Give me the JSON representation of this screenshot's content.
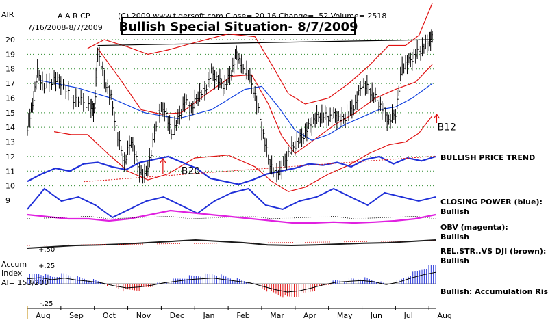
{
  "chart_data": {
    "type": "line",
    "title": "Bullish Special Situation- 8/7/2009",
    "header": {
      "symbol": "AIR",
      "company": "A A R CP",
      "date_range": "7/16/2008-8/7/2009",
      "info_line": "(C) 2009 www.tigersoft.com    Close=  20.16   Change=  .52 Volume=  2518"
    },
    "y_axis": {
      "min": 9,
      "max": 20,
      "ticks": [
        "20",
        "19",
        "18",
        "17",
        "16",
        "15",
        "14",
        "13",
        "12",
        "11",
        "10",
        "9"
      ]
    },
    "x_axis": {
      "months": [
        "Aug",
        "Sep",
        "Oct",
        "Nov",
        "Dec",
        "Jan",
        "Feb",
        "Mar",
        "Apr",
        "May",
        "Jun",
        "Jul",
        "Aug"
      ]
    },
    "price": [
      {
        "m": 0.0,
        "v": 14.0
      },
      {
        "m": 0.15,
        "v": 15.5
      },
      {
        "m": 0.3,
        "v": 17.8
      },
      {
        "m": 0.5,
        "v": 16.8
      },
      {
        "m": 0.8,
        "v": 17.3
      },
      {
        "m": 1.0,
        "v": 17.1
      },
      {
        "m": 1.3,
        "v": 16.0
      },
      {
        "m": 1.6,
        "v": 15.8
      },
      {
        "m": 1.9,
        "v": 15.4
      },
      {
        "m": 2.0,
        "v": 15.2
      },
      {
        "m": 2.1,
        "v": 19.2
      },
      {
        "m": 2.3,
        "v": 17.3
      },
      {
        "m": 2.5,
        "v": 16.0
      },
      {
        "m": 2.7,
        "v": 13.3
      },
      {
        "m": 2.9,
        "v": 11.5
      },
      {
        "m": 3.1,
        "v": 13.2
      },
      {
        "m": 3.3,
        "v": 11.3
      },
      {
        "m": 3.5,
        "v": 10.6
      },
      {
        "m": 3.7,
        "v": 12.2
      },
      {
        "m": 3.9,
        "v": 15.0
      },
      {
        "m": 4.1,
        "v": 15.3
      },
      {
        "m": 4.3,
        "v": 13.5
      },
      {
        "m": 4.5,
        "v": 14.5
      },
      {
        "m": 4.7,
        "v": 15.8
      },
      {
        "m": 4.9,
        "v": 15.2
      },
      {
        "m": 5.1,
        "v": 16.2
      },
      {
        "m": 5.3,
        "v": 16.5
      },
      {
        "m": 5.5,
        "v": 17.8
      },
      {
        "m": 5.7,
        "v": 17.2
      },
      {
        "m": 5.9,
        "v": 16.8
      },
      {
        "m": 6.1,
        "v": 17.8
      },
      {
        "m": 6.25,
        "v": 19.1
      },
      {
        "m": 6.4,
        "v": 18.1
      },
      {
        "m": 6.6,
        "v": 17.7
      },
      {
        "m": 6.8,
        "v": 16.2
      },
      {
        "m": 7.0,
        "v": 14.0
      },
      {
        "m": 7.2,
        "v": 11.8
      },
      {
        "m": 7.4,
        "v": 10.8
      },
      {
        "m": 7.6,
        "v": 11.2
      },
      {
        "m": 7.8,
        "v": 12.2
      },
      {
        "m": 8.0,
        "v": 12.8
      },
      {
        "m": 8.2,
        "v": 13.3
      },
      {
        "m": 8.4,
        "v": 14.0
      },
      {
        "m": 8.6,
        "v": 14.6
      },
      {
        "m": 8.8,
        "v": 14.8
      },
      {
        "m": 9.0,
        "v": 14.7
      },
      {
        "m": 9.2,
        "v": 14.8
      },
      {
        "m": 9.4,
        "v": 14.5
      },
      {
        "m": 9.6,
        "v": 14.9
      },
      {
        "m": 9.8,
        "v": 15.6
      },
      {
        "m": 10.0,
        "v": 17.0
      },
      {
        "m": 10.2,
        "v": 16.6
      },
      {
        "m": 10.4,
        "v": 16.0
      },
      {
        "m": 10.6,
        "v": 15.3
      },
      {
        "m": 10.8,
        "v": 14.4
      },
      {
        "m": 11.0,
        "v": 15.0
      },
      {
        "m": 11.2,
        "v": 18.2
      },
      {
        "m": 11.4,
        "v": 18.5
      },
      {
        "m": 11.6,
        "v": 19.0
      },
      {
        "m": 11.8,
        "v": 19.4
      },
      {
        "m": 12.0,
        "v": 19.8
      },
      {
        "m": 12.1,
        "v": 20.2
      }
    ],
    "ma_50": [
      {
        "m": 0.4,
        "v": 17.2
      },
      {
        "m": 1.5,
        "v": 16.7
      },
      {
        "m": 2.5,
        "v": 16.0
      },
      {
        "m": 3.5,
        "v": 15.0
      },
      {
        "m": 4.5,
        "v": 14.6
      },
      {
        "m": 5.5,
        "v": 15.2
      },
      {
        "m": 6.5,
        "v": 16.6
      },
      {
        "m": 7.0,
        "v": 16.8
      },
      {
        "m": 7.5,
        "v": 15.4
      },
      {
        "m": 8.0,
        "v": 13.8
      },
      {
        "m": 8.5,
        "v": 13.1
      },
      {
        "m": 9.0,
        "v": 13.5
      },
      {
        "m": 9.5,
        "v": 14.2
      },
      {
        "m": 10.0,
        "v": 14.7
      },
      {
        "m": 10.5,
        "v": 15.2
      },
      {
        "m": 11.0,
        "v": 15.4
      },
      {
        "m": 11.5,
        "v": 16.0
      },
      {
        "m": 12.1,
        "v": 17.0
      }
    ],
    "band_upper": [
      {
        "m": 1.8,
        "v": 19.4
      },
      {
        "m": 2.3,
        "v": 20.0
      },
      {
        "m": 3.0,
        "v": 19.5
      },
      {
        "m": 3.6,
        "v": 19.0
      },
      {
        "m": 4.2,
        "v": 19.3
      },
      {
        "m": 5.0,
        "v": 19.8
      },
      {
        "m": 6.0,
        "v": 20.4
      },
      {
        "m": 6.8,
        "v": 20.2
      },
      {
        "m": 7.3,
        "v": 18.3
      },
      {
        "m": 7.8,
        "v": 16.3
      },
      {
        "m": 8.3,
        "v": 15.6
      },
      {
        "m": 9.0,
        "v": 16.0
      },
      {
        "m": 9.6,
        "v": 17.0
      },
      {
        "m": 10.2,
        "v": 18.2
      },
      {
        "m": 10.8,
        "v": 19.6
      },
      {
        "m": 11.3,
        "v": 19.6
      },
      {
        "m": 11.7,
        "v": 20.3
      },
      {
        "m": 12.1,
        "v": 22.5
      }
    ],
    "band_lower": [
      {
        "m": 1.8,
        "v": 13.5
      },
      {
        "m": 2.4,
        "v": 12.2
      },
      {
        "m": 3.0,
        "v": 11.0
      },
      {
        "m": 3.6,
        "v": 10.4
      },
      {
        "m": 4.2,
        "v": 10.8
      },
      {
        "m": 5.0,
        "v": 11.9
      },
      {
        "m": 6.0,
        "v": 12.1
      },
      {
        "m": 6.8,
        "v": 11.3
      },
      {
        "m": 7.3,
        "v": 10.3
      },
      {
        "m": 7.8,
        "v": 9.6
      },
      {
        "m": 8.3,
        "v": 9.9
      },
      {
        "m": 9.0,
        "v": 10.8
      },
      {
        "m": 9.6,
        "v": 11.4
      },
      {
        "m": 10.2,
        "v": 12.2
      },
      {
        "m": 10.8,
        "v": 12.8
      },
      {
        "m": 11.3,
        "v": 13.0
      },
      {
        "m": 11.7,
        "v": 13.6
      },
      {
        "m": 12.1,
        "v": 14.8
      }
    ],
    "band_lower_left": [
      {
        "m": 0.8,
        "v": 13.7
      },
      {
        "m": 1.3,
        "v": 13.5
      },
      {
        "m": 1.8,
        "v": 13.5
      }
    ],
    "band_mid_red": [
      {
        "m": 2.1,
        "v": 19.4
      },
      {
        "m": 2.8,
        "v": 17.2
      },
      {
        "m": 3.4,
        "v": 15.2
      },
      {
        "m": 4.0,
        "v": 14.9
      },
      {
        "m": 4.6,
        "v": 15.0
      },
      {
        "m": 5.3,
        "v": 16.2
      },
      {
        "m": 6.1,
        "v": 17.5
      },
      {
        "m": 6.7,
        "v": 17.6
      },
      {
        "m": 7.2,
        "v": 15.6
      },
      {
        "m": 7.6,
        "v": 13.4
      },
      {
        "m": 8.0,
        "v": 12.2
      },
      {
        "m": 8.6,
        "v": 13.2
      },
      {
        "m": 9.2,
        "v": 14.2
      },
      {
        "m": 9.8,
        "v": 15.0
      },
      {
        "m": 10.4,
        "v": 16.0
      },
      {
        "m": 11.0,
        "v": 16.6
      },
      {
        "m": 11.6,
        "v": 17.1
      },
      {
        "m": 12.1,
        "v": 18.3
      }
    ],
    "resistance_line": {
      "from": {
        "m": 2.1,
        "v": 19.6
      },
      "to": {
        "m": 12.1,
        "v": 20.0
      }
    },
    "trend_panel": {
      "label": "BULLISH PRICE TREND",
      "series": [
        10.3,
        10.8,
        11.2,
        11.0,
        11.5,
        11.6,
        11.3,
        11.1,
        11.6,
        11.8,
        12.0,
        11.6,
        11.2,
        10.5,
        10.3,
        10.1,
        10.4,
        10.8,
        11.0,
        11.2,
        11.5,
        11.4,
        11.6,
        11.3,
        11.8,
        12.0,
        11.5,
        11.9,
        11.7,
        12.0
      ]
    },
    "closing_power": {
      "label": "CLOSING POWER (blue):",
      "status": "Bullish",
      "series": [
        0.4,
        0.9,
        0.6,
        0.7,
        0.5,
        0.2,
        0.4,
        0.6,
        0.7,
        0.5,
        0.3,
        0.6,
        0.8,
        0.9,
        0.5,
        0.4,
        0.6,
        0.7,
        0.9,
        0.7,
        0.5,
        0.8,
        0.7,
        0.6,
        0.7
      ]
    },
    "obv": {
      "label": "OBV (magenta):",
      "status": "Bullish",
      "series": [
        0.6,
        0.55,
        0.5,
        0.5,
        0.45,
        0.5,
        0.6,
        0.7,
        0.65,
        0.6,
        0.55,
        0.5,
        0.45,
        0.4,
        0.4,
        0.42,
        0.4,
        0.42,
        0.45,
        0.5,
        0.6
      ]
    },
    "rel_strength": {
      "label": "REL.STR..VS DJI (brown):",
      "status": "Bullish",
      "tick_label": "+.50",
      "series": [
        0.3,
        0.35,
        0.4,
        0.42,
        0.45,
        0.5,
        0.55,
        0.6,
        0.55,
        0.5,
        0.42,
        0.4,
        0.42,
        0.45,
        0.48,
        0.5,
        0.55,
        0.6
      ]
    },
    "accum_index": {
      "title_line1": "Accum",
      "title_line2": "Index",
      "ai_text": "AI= 153/200",
      "tick_hi": "+.25",
      "tick_lo": "-.25",
      "status": "Bullish: Accumulation Rising",
      "series": [
        0.12,
        0.15,
        0.1,
        0.14,
        0.09,
        0.06,
        0.02,
        -0.05,
        -0.1,
        -0.08,
        -0.04,
        0.02,
        0.06,
        0.1,
        0.12,
        0.14,
        0.1,
        0.06,
        0.02,
        -0.06,
        -0.14,
        -0.2,
        -0.17,
        -0.1,
        -0.02,
        0.04,
        0.06,
        0.08,
        0.05,
        -0.02,
        0.04,
        0.14,
        0.22,
        0.28
      ]
    },
    "annotations": [
      {
        "text": "B20",
        "m": 4.6,
        "v": 10.8
      },
      {
        "text": "B12",
        "m": 12.25,
        "v": 13.8
      }
    ]
  }
}
